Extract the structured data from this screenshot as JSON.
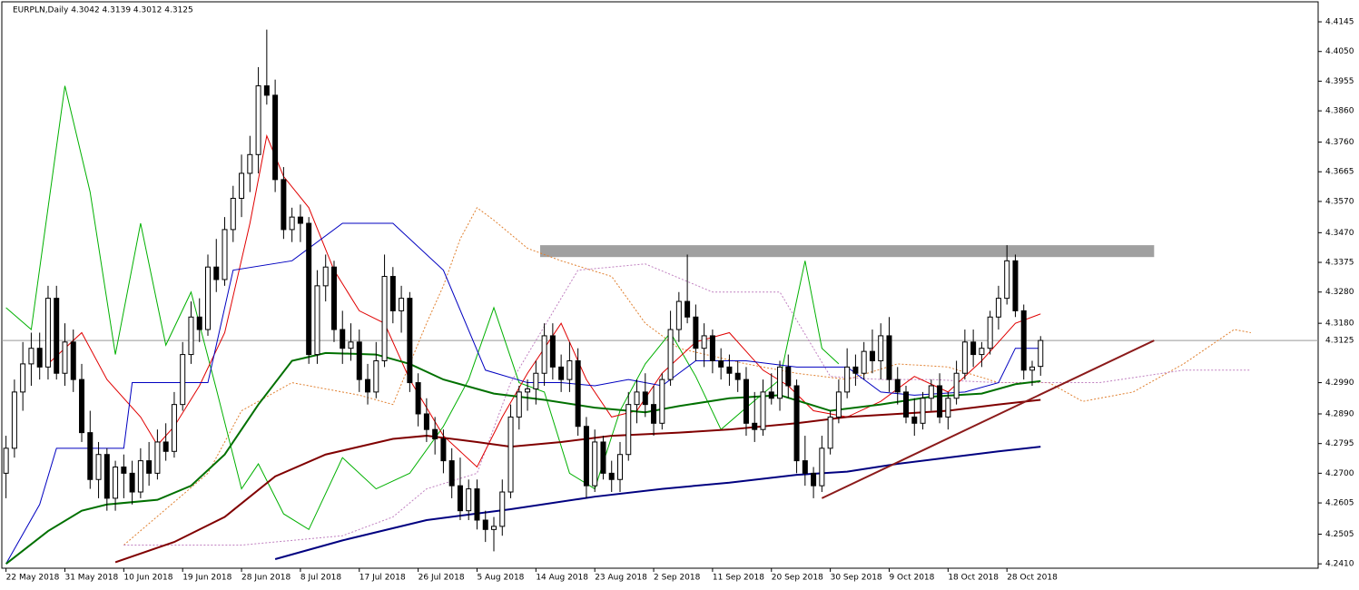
{
  "chart_data": {
    "type": "candlestick",
    "title": "EURPLN,Daily  4.3042 4.3139 4.3012 4.3125",
    "ylim": [
      4.2396,
      4.4209
    ],
    "xlim": [
      -0.5,
      156
    ],
    "yticks": [
      4.4145,
      {
        "value": 4.405,
        "label": "4.4050"
      },
      4.3955,
      {
        "value": 4.386,
        "label": "4.3860"
      },
      {
        "value": 4.376,
        "label": "4.3760"
      },
      4.3665,
      {
        "value": 4.357,
        "label": "4.3570"
      },
      {
        "value": 4.347,
        "label": "4.3470"
      },
      4.3375,
      {
        "value": 4.328,
        "label": "4.3280"
      },
      {
        "value": 4.318,
        "label": "4.3180"
      },
      {
        "value": 4.299,
        "label": "4.2990"
      },
      {
        "value": 4.289,
        "label": "4.2890"
      },
      4.2795,
      {
        "value": 4.27,
        "label": "4.2700"
      },
      4.2605,
      4.2505,
      {
        "value": 4.241,
        "label": "4.2410"
      }
    ],
    "xticks": [
      {
        "value": 0,
        "label": "22 May 2018"
      },
      {
        "value": 7,
        "label": "31 May 2018"
      },
      {
        "value": 14,
        "label": "10 Jun 2018"
      },
      {
        "value": 21,
        "label": "19 Jun 2018"
      },
      {
        "value": 28,
        "label": "28 Jun 2018"
      },
      {
        "value": 35,
        "label": "8 Jul 2018"
      },
      {
        "value": 42,
        "label": "17 Jul 2018"
      },
      {
        "value": 49,
        "label": "26 Jul 2018"
      },
      {
        "value": 56,
        "label": "5 Aug 2018"
      },
      {
        "value": 63,
        "label": "14 Aug 2018"
      },
      {
        "value": 70,
        "label": "23 Aug 2018"
      },
      {
        "value": 77,
        "label": "2 Sep 2018"
      },
      {
        "value": 84,
        "label": "11 Sep 2018"
      },
      {
        "value": 91,
        "label": "20 Sep 2018"
      },
      {
        "value": 98,
        "label": "30 Sep 2018"
      },
      {
        "value": 105,
        "label": "9 Oct 2018"
      },
      {
        "value": 112,
        "label": "18 Oct 2018"
      },
      {
        "value": 119,
        "label": "28 Oct 2018"
      }
    ],
    "current_price": 4.3125,
    "ohlc": [
      [
        4.27,
        4.282,
        4.262,
        4.278
      ],
      [
        4.278,
        4.3,
        4.275,
        4.296
      ],
      [
        4.296,
        4.312,
        4.29,
        4.305
      ],
      [
        4.305,
        4.315,
        4.298,
        4.31
      ],
      [
        4.31,
        4.315,
        4.3,
        4.304
      ],
      [
        4.304,
        4.33,
        4.3,
        4.326
      ],
      [
        4.326,
        4.33,
        4.3,
        4.302
      ],
      [
        4.302,
        4.318,
        4.298,
        4.312
      ],
      [
        4.312,
        4.316,
        4.296,
        4.3
      ],
      [
        4.3,
        4.305,
        4.28,
        4.283
      ],
      [
        4.283,
        4.29,
        4.265,
        4.268
      ],
      [
        4.268,
        4.28,
        4.262,
        4.276
      ],
      [
        4.276,
        4.278,
        4.258,
        4.262
      ],
      [
        4.262,
        4.274,
        4.258,
        4.272
      ],
      [
        4.272,
        4.276,
        4.262,
        4.27
      ],
      [
        4.27,
        4.274,
        4.26,
        4.264
      ],
      [
        4.264,
        4.278,
        4.262,
        4.274
      ],
      [
        4.274,
        4.28,
        4.266,
        4.27
      ],
      [
        4.27,
        4.284,
        4.268,
        4.28
      ],
      [
        4.28,
        4.286,
        4.274,
        4.277
      ],
      [
        4.277,
        4.296,
        4.275,
        4.292
      ],
      [
        4.292,
        4.312,
        4.29,
        4.308
      ],
      [
        4.308,
        4.325,
        4.305,
        4.32
      ],
      [
        4.32,
        4.326,
        4.312,
        4.316
      ],
      [
        4.316,
        4.34,
        4.314,
        4.336
      ],
      [
        4.336,
        4.345,
        4.328,
        4.332
      ],
      [
        4.332,
        4.352,
        4.33,
        4.348
      ],
      [
        4.348,
        4.362,
        4.344,
        4.358
      ],
      [
        4.358,
        4.372,
        4.352,
        4.366
      ],
      [
        4.366,
        4.378,
        4.36,
        4.372
      ],
      [
        4.372,
        4.4,
        4.366,
        4.394
      ],
      [
        4.394,
        4.412,
        4.388,
        4.391
      ],
      [
        4.391,
        4.396,
        4.36,
        4.364
      ],
      [
        4.364,
        4.368,
        4.345,
        4.348
      ],
      [
        4.348,
        4.355,
        4.344,
        4.352
      ],
      [
        4.352,
        4.356,
        4.344,
        4.35
      ],
      [
        4.35,
        4.352,
        4.305,
        4.308
      ],
      [
        4.308,
        4.335,
        4.305,
        4.33
      ],
      [
        4.33,
        4.34,
        4.325,
        4.336
      ],
      [
        4.336,
        4.338,
        4.312,
        4.316
      ],
      [
        4.316,
        4.322,
        4.305,
        4.31
      ],
      [
        4.31,
        4.318,
        4.306,
        4.312
      ],
      [
        4.312,
        4.316,
        4.296,
        4.3
      ],
      [
        4.3,
        4.305,
        4.292,
        4.296
      ],
      [
        4.296,
        4.312,
        4.294,
        4.306
      ],
      [
        4.306,
        4.34,
        4.304,
        4.333
      ],
      [
        4.333,
        4.336,
        4.318,
        4.322
      ],
      [
        4.322,
        4.33,
        4.315,
        4.326
      ],
      [
        4.326,
        4.328,
        4.296,
        4.299
      ],
      [
        4.299,
        4.302,
        4.285,
        4.289
      ],
      [
        4.289,
        4.294,
        4.28,
        4.284
      ],
      [
        4.284,
        4.288,
        4.276,
        4.281
      ],
      [
        4.281,
        4.284,
        4.27,
        4.274
      ],
      [
        4.274,
        4.278,
        4.262,
        4.266
      ],
      [
        4.266,
        4.275,
        4.255,
        4.258
      ],
      [
        4.258,
        4.268,
        4.255,
        4.265
      ],
      [
        4.265,
        4.268,
        4.252,
        4.255
      ],
      [
        4.255,
        4.258,
        4.248,
        4.252
      ],
      [
        4.252,
        4.256,
        4.245,
        4.253
      ],
      [
        4.253,
        4.268,
        4.25,
        4.264
      ],
      [
        4.264,
        4.292,
        4.262,
        4.288
      ],
      [
        4.288,
        4.298,
        4.284,
        4.296
      ],
      [
        4.296,
        4.3,
        4.29,
        4.297
      ],
      [
        4.297,
        4.306,
        4.292,
        4.302
      ],
      [
        4.302,
        4.318,
        4.298,
        4.314
      ],
      [
        4.314,
        4.318,
        4.3,
        4.304
      ],
      [
        4.304,
        4.308,
        4.296,
        4.3
      ],
      [
        4.3,
        4.312,
        4.296,
        4.306
      ],
      [
        4.306,
        4.31,
        4.282,
        4.285
      ],
      [
        4.285,
        4.288,
        4.262,
        4.266
      ],
      [
        4.266,
        4.284,
        4.264,
        4.28
      ],
      [
        4.28,
        4.282,
        4.268,
        4.27
      ],
      [
        4.27,
        4.274,
        4.264,
        4.268
      ],
      [
        4.268,
        4.28,
        4.264,
        4.276
      ],
      [
        4.276,
        4.296,
        4.274,
        4.292
      ],
      [
        4.292,
        4.3,
        4.286,
        4.296
      ],
      [
        4.296,
        4.302,
        4.288,
        4.292
      ],
      [
        4.292,
        4.298,
        4.282,
        4.286
      ],
      [
        4.286,
        4.302,
        4.284,
        4.3
      ],
      [
        4.3,
        4.322,
        4.298,
        4.316
      ],
      [
        4.316,
        4.328,
        4.312,
        4.325
      ],
      [
        4.325,
        4.34,
        4.318,
        4.32
      ],
      [
        4.32,
        4.324,
        4.306,
        4.31
      ],
      [
        4.31,
        4.318,
        4.304,
        4.314
      ],
      [
        4.314,
        4.316,
        4.302,
        4.306
      ],
      [
        4.306,
        4.31,
        4.3,
        4.304
      ],
      [
        4.304,
        4.308,
        4.298,
        4.302
      ],
      [
        4.302,
        4.306,
        4.296,
        4.3
      ],
      [
        4.3,
        4.304,
        4.282,
        4.286
      ],
      [
        4.286,
        4.296,
        4.28,
        4.284
      ],
      [
        4.284,
        4.3,
        4.282,
        4.296
      ],
      [
        4.296,
        4.302,
        4.292,
        4.294
      ],
      [
        4.294,
        4.306,
        4.29,
        4.304
      ],
      [
        4.304,
        4.308,
        4.294,
        4.298
      ],
      [
        4.298,
        4.3,
        4.27,
        4.274
      ],
      [
        4.274,
        4.282,
        4.266,
        4.27
      ],
      [
        4.27,
        4.272,
        4.262,
        4.266
      ],
      [
        4.266,
        4.282,
        4.264,
        4.278
      ],
      [
        4.278,
        4.29,
        4.276,
        4.288
      ],
      [
        4.288,
        4.3,
        4.286,
        4.296
      ],
      [
        4.296,
        4.31,
        4.294,
        4.304
      ],
      [
        4.304,
        4.308,
        4.298,
        4.302
      ],
      [
        4.302,
        4.312,
        4.3,
        4.309
      ],
      [
        4.309,
        4.316,
        4.302,
        4.306
      ],
      [
        4.306,
        4.318,
        4.3,
        4.314
      ],
      [
        4.314,
        4.32,
        4.296,
        4.3
      ],
      [
        4.3,
        4.304,
        4.292,
        4.296
      ],
      [
        4.296,
        4.298,
        4.286,
        4.288
      ],
      [
        4.288,
        4.294,
        4.282,
        4.286
      ],
      [
        4.286,
        4.296,
        4.284,
        4.294
      ],
      [
        4.294,
        4.3,
        4.29,
        4.298
      ],
      [
        4.298,
        4.302,
        4.286,
        4.288
      ],
      [
        4.288,
        4.296,
        4.284,
        4.294
      ],
      [
        4.294,
        4.306,
        4.292,
        4.302
      ],
      [
        4.302,
        4.316,
        4.3,
        4.312
      ],
      [
        4.312,
        4.316,
        4.304,
        4.308
      ],
      [
        4.308,
        4.312,
        4.304,
        4.31
      ],
      [
        4.31,
        4.322,
        4.308,
        4.32
      ],
      [
        4.32,
        4.33,
        4.316,
        4.326
      ],
      [
        4.326,
        4.343,
        4.324,
        4.338
      ],
      [
        4.338,
        4.34,
        4.32,
        4.322
      ],
      [
        4.322,
        4.324,
        4.3,
        4.303
      ],
      [
        4.303,
        4.306,
        4.298,
        4.304
      ],
      [
        4.3042,
        4.3139,
        4.3012,
        4.3125
      ]
    ],
    "lines": [
      {
        "color": "#e08030",
        "width": 1,
        "dash": "2,2",
        "x": [
          14,
          24,
          28,
          34,
          42,
          46,
          50,
          52,
          54,
          56,
          58,
          62,
          66,
          72,
          76,
          80,
          88,
          94,
          100,
          106,
          112,
          118,
          124,
          128,
          134,
          140,
          146,
          148
        ],
        "values": [
          4.247,
          4.27,
          4.29,
          4.299,
          4.295,
          4.292,
          4.318,
          4.33,
          4.345,
          4.355,
          4.351,
          4.342,
          4.338,
          4.333,
          4.318,
          4.31,
          4.305,
          4.302,
          4.3,
          4.305,
          4.304,
          4.299,
          4.299,
          4.293,
          4.296,
          4.305,
          4.316,
          4.315
        ]
      },
      {
        "color": "#c080c0",
        "width": 1,
        "dash": "2,2",
        "x": [
          14,
          28,
          40,
          46,
          50,
          56,
          60,
          68,
          76,
          84,
          92,
          98,
          104,
          110,
          118,
          130,
          140,
          148
        ],
        "values": [
          4.247,
          4.247,
          4.25,
          4.256,
          4.265,
          4.27,
          4.299,
          4.335,
          4.337,
          4.328,
          4.328,
          4.301,
          4.3,
          4.3,
          4.299,
          4.299,
          4.303,
          4.303
        ]
      },
      {
        "color": "#00b000",
        "width": 1,
        "x": [
          0,
          3,
          7,
          10,
          13,
          16,
          19,
          22,
          25,
          28,
          30,
          33,
          36,
          40,
          44,
          48,
          52,
          55,
          58,
          61,
          64,
          67,
          70,
          73,
          76,
          79,
          82,
          85,
          88,
          92,
          95,
          97,
          99
        ],
        "values": [
          4.323,
          4.316,
          4.394,
          4.36,
          4.308,
          4.35,
          4.311,
          4.328,
          4.297,
          4.265,
          4.273,
          4.257,
          4.252,
          4.275,
          4.265,
          4.27,
          4.285,
          4.3,
          4.323,
          4.299,
          4.296,
          4.27,
          4.265,
          4.29,
          4.305,
          4.315,
          4.301,
          4.284,
          4.291,
          4.3,
          4.338,
          4.31,
          4.305
        ]
      },
      {
        "color": "#e00000",
        "width": 1,
        "x": [
          5,
          9,
          12,
          16,
          18,
          20,
          23,
          26,
          29,
          31,
          33,
          36,
          39,
          42,
          45,
          48,
          52,
          56,
          59,
          62,
          66,
          69,
          72,
          75,
          78,
          82,
          86,
          90,
          93,
          96,
          100,
          104,
          108,
          112,
          116,
          120,
          123
        ],
        "values": [
          4.305,
          4.315,
          4.3,
          4.288,
          4.279,
          4.285,
          4.298,
          4.315,
          4.35,
          4.378,
          4.365,
          4.355,
          4.335,
          4.322,
          4.318,
          4.3,
          4.282,
          4.272,
          4.288,
          4.302,
          4.318,
          4.3,
          4.288,
          4.29,
          4.302,
          4.312,
          4.315,
          4.303,
          4.298,
          4.29,
          4.288,
          4.293,
          4.301,
          4.296,
          4.306,
          4.318,
          4.321
        ]
      },
      {
        "color": "#0000c0",
        "width": 1,
        "x": [
          0,
          4,
          6,
          14,
          15,
          24,
          27,
          34,
          40,
          46,
          52,
          57,
          62,
          66,
          70,
          74,
          78,
          82,
          88,
          94,
          100,
          104,
          108,
          114,
          118,
          120,
          123
        ],
        "values": [
          4.241,
          4.26,
          4.278,
          4.278,
          4.299,
          4.299,
          4.335,
          4.338,
          4.35,
          4.35,
          4.335,
          4.303,
          4.299,
          4.299,
          4.298,
          4.3,
          4.298,
          4.306,
          4.306,
          4.304,
          4.304,
          4.296,
          4.295,
          4.296,
          4.299,
          4.31,
          4.31
        ]
      },
      {
        "color": "#007000",
        "width": 2,
        "x": [
          0,
          5,
          9,
          12,
          18,
          22,
          26,
          30,
          34,
          38,
          44,
          48,
          52,
          58,
          64,
          70,
          76,
          80,
          86,
          92,
          98,
          104,
          110,
          116,
          120,
          123
        ],
        "values": [
          4.241,
          4.2515,
          4.258,
          4.26,
          4.2615,
          4.266,
          4.276,
          4.292,
          4.306,
          4.3085,
          4.308,
          4.305,
          4.3,
          4.2955,
          4.2935,
          4.291,
          4.2895,
          4.2915,
          4.294,
          4.295,
          4.29,
          4.292,
          4.2945,
          4.2955,
          4.2985,
          4.2995
        ]
      },
      {
        "color": "#800000",
        "width": 2,
        "x": [
          13,
          20,
          26,
          32,
          38,
          46,
          50,
          56,
          60,
          66,
          72,
          80,
          86,
          94,
          100,
          106,
          112,
          118,
          123
        ],
        "values": [
          4.2415,
          4.248,
          4.256,
          4.269,
          4.276,
          4.281,
          4.282,
          4.28,
          4.2785,
          4.28,
          4.282,
          4.283,
          4.284,
          4.286,
          4.288,
          4.289,
          4.29,
          4.292,
          4.2935
        ]
      },
      {
        "color": "#000080",
        "width": 2,
        "x": [
          32,
          40,
          50,
          60,
          70,
          78,
          86,
          94,
          100,
          106,
          112,
          118,
          123
        ],
        "values": [
          4.2425,
          4.2485,
          4.255,
          4.2585,
          4.2625,
          4.265,
          4.267,
          4.2695,
          4.2705,
          4.273,
          4.275,
          4.277,
          4.2785
        ]
      },
      {
        "color": "#8b1a1a",
        "width": 2,
        "x": [
          97,
          136.5
        ],
        "values": [
          4.262,
          4.3125
        ]
      }
    ],
    "zone": {
      "color": "#a0a0a0",
      "x": [
        63.5,
        136.5
      ],
      "y": [
        4.3392,
        4.343
      ]
    }
  }
}
